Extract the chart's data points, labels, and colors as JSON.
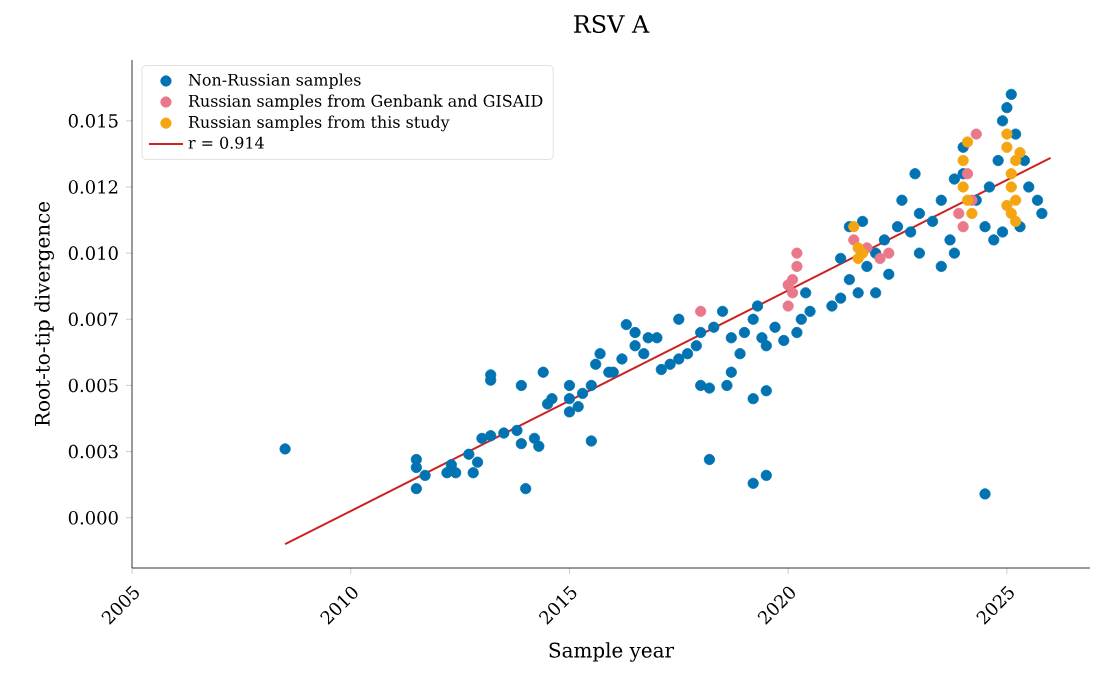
{
  "chart_data": {
    "type": "scatter",
    "title": "RSV A",
    "xlabel": "Sample year",
    "ylabel": "Root-to-tip divergence",
    "xlim": [
      2005,
      2026.9
    ],
    "ylim": [
      -0.0019,
      0.0173
    ],
    "xticks": [
      2005,
      2010,
      2015,
      2020,
      2025
    ],
    "yticks": [
      {
        "value": 0,
        "label": "0.000"
      },
      {
        "value": 0.0025,
        "label": "0.003"
      },
      {
        "value": 0.005,
        "label": "0.005"
      },
      {
        "value": 0.0075,
        "label": "0.007"
      },
      {
        "value": 0.01,
        "label": "0.010"
      },
      {
        "value": 0.0125,
        "label": "0.012"
      },
      {
        "value": 0.015,
        "label": "0.015"
      }
    ],
    "legend": "top left",
    "grid": false,
    "series": [
      {
        "name": "Non-Russian samples",
        "color": "#0173b2",
        "marker": "circle",
        "x": [
          2008.5,
          2011.5,
          2011.5,
          2014,
          2015.5,
          2018.2,
          2019.2,
          2019.5,
          2024.5,
          2011.5,
          2011.7,
          2012.2,
          2012.4,
          2012.3,
          2012.8,
          2012.9,
          2012.7,
          2013,
          2013.2,
          2013.5,
          2013.8,
          2013.9,
          2014.3,
          2014.2,
          2013.2,
          2013.2,
          2013.9,
          2014.5,
          2014.6,
          2014.4,
          2015,
          2015,
          2015.2,
          2015.3,
          2015.5,
          2015,
          2015.6,
          2015.7,
          2015.9,
          2016,
          2016.2,
          2016.5,
          2016.5,
          2016.8,
          2017,
          2016.7,
          2017.1,
          2017.3,
          2017.5,
          2017.7,
          2017.9,
          2018,
          2018.3,
          2018,
          2018.2,
          2018.6,
          2018.7,
          2018.7,
          2018.9,
          2019,
          2019.2,
          2019.4,
          2019.5,
          2019.2,
          2019.5,
          2019.7,
          2019.9,
          2020.2,
          2020.3,
          2020.5,
          2020.4,
          2018.5,
          2017.5,
          2016.3,
          2019.3,
          2021,
          2021.2,
          2021.4,
          2021.6,
          2021.8,
          2021.4,
          2021.7,
          2022,
          2022.2,
          2022.5,
          2022.6,
          2022.8,
          2023,
          2023,
          2023.3,
          2023.5,
          2023.7,
          2023.8,
          2023.5,
          2022.3,
          2022,
          2024,
          2024,
          2024.3,
          2024.5,
          2024.7,
          2024.6,
          2024.8,
          2024.9,
          2025,
          2025.1,
          2025.2,
          2025.4,
          2025.5,
          2025.7,
          2025.8,
          2025.3,
          2024.9,
          2023.8,
          2022.9,
          2021.2
        ],
        "values": [
          0.0026,
          0.0022,
          0.0011,
          0.0011,
          0.0029,
          0.0022,
          0.0013,
          0.0016,
          0.0009,
          0.0019,
          0.0016,
          0.0017,
          0.0017,
          0.002,
          0.0017,
          0.0021,
          0.0024,
          0.003,
          0.0031,
          0.0032,
          0.0033,
          0.0028,
          0.0027,
          0.003,
          0.0052,
          0.0054,
          0.005,
          0.0043,
          0.0045,
          0.0055,
          0.004,
          0.0045,
          0.0042,
          0.0047,
          0.005,
          0.005,
          0.0058,
          0.0062,
          0.0055,
          0.0055,
          0.006,
          0.0065,
          0.007,
          0.0068,
          0.0068,
          0.0062,
          0.0056,
          0.0058,
          0.006,
          0.0062,
          0.0065,
          0.007,
          0.0072,
          0.005,
          0.0049,
          0.005,
          0.0055,
          0.0068,
          0.0062,
          0.007,
          0.0075,
          0.0068,
          0.0065,
          0.0045,
          0.0048,
          0.0072,
          0.0067,
          0.007,
          0.0075,
          0.0078,
          0.0085,
          0.0078,
          0.0075,
          0.0073,
          0.008,
          0.008,
          0.0083,
          0.009,
          0.0085,
          0.0095,
          0.011,
          0.0112,
          0.01,
          0.0105,
          0.011,
          0.012,
          0.0108,
          0.01,
          0.0115,
          0.0112,
          0.012,
          0.0105,
          0.0128,
          0.0095,
          0.0092,
          0.0085,
          0.014,
          0.013,
          0.012,
          0.011,
          0.0105,
          0.0125,
          0.0135,
          0.015,
          0.0155,
          0.016,
          0.0145,
          0.0135,
          0.0125,
          0.012,
          0.0115,
          0.011,
          0.0108,
          0.01,
          0.013,
          0.0098
        ]
      },
      {
        "name": "Russian samples from Genbank and GISAID",
        "color": "#e8788a",
        "marker": "circle",
        "x": [
          2018,
          2020,
          2020.1,
          2020.1,
          2020.2,
          2020.2,
          2020,
          2021.8,
          2022.1,
          2022.3,
          2023.9,
          2024.2,
          2024.1,
          2024.3,
          2024,
          2021.5
        ],
        "values": [
          0.0078,
          0.008,
          0.0085,
          0.009,
          0.0095,
          0.01,
          0.0088,
          0.0102,
          0.0098,
          0.01,
          0.0115,
          0.012,
          0.013,
          0.0145,
          0.011,
          0.0105
        ]
      },
      {
        "name": "Russian samples from this study",
        "color": "#f5a511",
        "marker": "circle",
        "x": [
          2021.5,
          2021.6,
          2021.6,
          2021.7,
          2024,
          2024,
          2024.1,
          2024.2,
          2024.1,
          2025,
          2025,
          2025.1,
          2025.1,
          2025.2,
          2025.1,
          2025.2,
          2025.3,
          2025,
          2025.2
        ],
        "values": [
          0.011,
          0.0102,
          0.0098,
          0.01,
          0.0135,
          0.0125,
          0.012,
          0.0115,
          0.0142,
          0.0145,
          0.014,
          0.013,
          0.0125,
          0.012,
          0.0115,
          0.0135,
          0.0138,
          0.0118,
          0.0112
        ]
      },
      {
        "name": "r = 0.914",
        "type": "line",
        "marker": "none",
        "color": "#cc2222",
        "x": [
          2008.5,
          2026
        ],
        "values": [
          -0.001,
          0.0136
        ]
      }
    ]
  }
}
